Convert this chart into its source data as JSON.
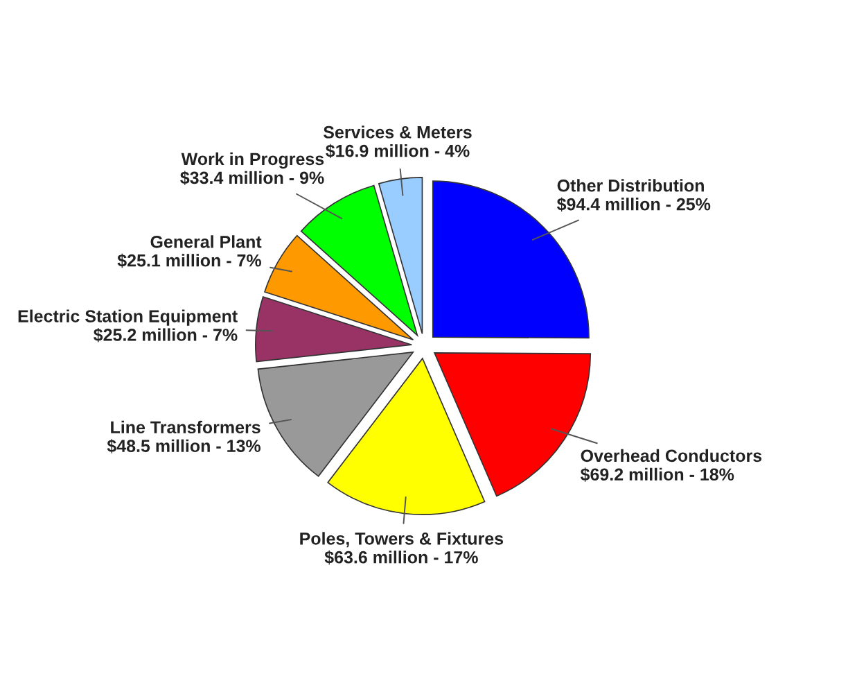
{
  "chart_data": {
    "type": "pie",
    "categories": [
      "Other Distribution",
      "Overhead Conductors",
      "Poles, Towers & Fixtures",
      "Line Transformers",
      "Electric Station Equipment",
      "General Plant",
      "Work in Progress",
      "Services & Meters"
    ],
    "values": [
      94400000,
      69200000,
      63600000,
      48500000,
      25200000,
      25100000,
      33400000,
      16900000
    ],
    "value_labels": [
      "$94.4 million - 25%",
      "$69.2 million - 18%",
      "$63.6 million - 17%",
      "$48.5 million - 13%",
      "$25.2 million - 7%",
      "$25.1 million - 7%",
      "$33.4 million - 9%",
      "$16.9 million - 4%"
    ],
    "colors": [
      "#0000ff",
      "#ff0000",
      "#ffff00",
      "#999999",
      "#993366",
      "#ff9900",
      "#00ff00",
      "#99ccff"
    ]
  }
}
